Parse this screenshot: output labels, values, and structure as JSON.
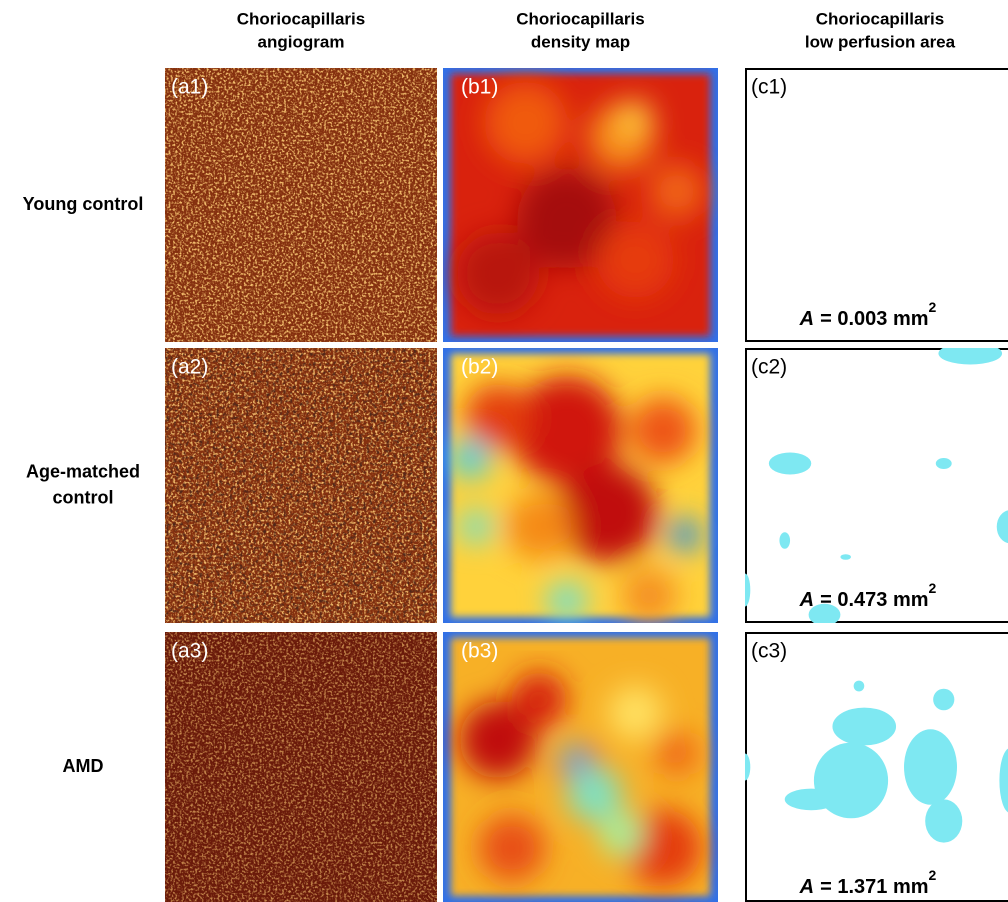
{
  "columns": [
    {
      "lines": [
        "Choriocapillaris",
        "angiogram"
      ]
    },
    {
      "lines": [
        "Choriocapillaris",
        "density map"
      ]
    },
    {
      "lines": [
        "Choriocapillaris",
        "low perfusion area"
      ]
    }
  ],
  "rows": [
    {
      "lines": [
        "Young control"
      ],
      "panels": [
        "(a1)",
        "(b1)",
        "(c1)"
      ],
      "area": {
        "symbol": "A",
        "text": "= 0.003 mm",
        "exponent": "2"
      }
    },
    {
      "lines": [
        "Age-matched",
        "control"
      ],
      "panels": [
        "(a2)",
        "(b2)",
        "(c2)"
      ],
      "area": {
        "symbol": "A",
        "text": "= 0.473 mm",
        "exponent": "2"
      }
    },
    {
      "lines": [
        "AMD"
      ],
      "panels": [
        "(a3)",
        "(b3)",
        "(c3)"
      ],
      "area": {
        "symbol": "A",
        "text": "= 1.371 mm",
        "exponent": "2"
      }
    }
  ]
}
